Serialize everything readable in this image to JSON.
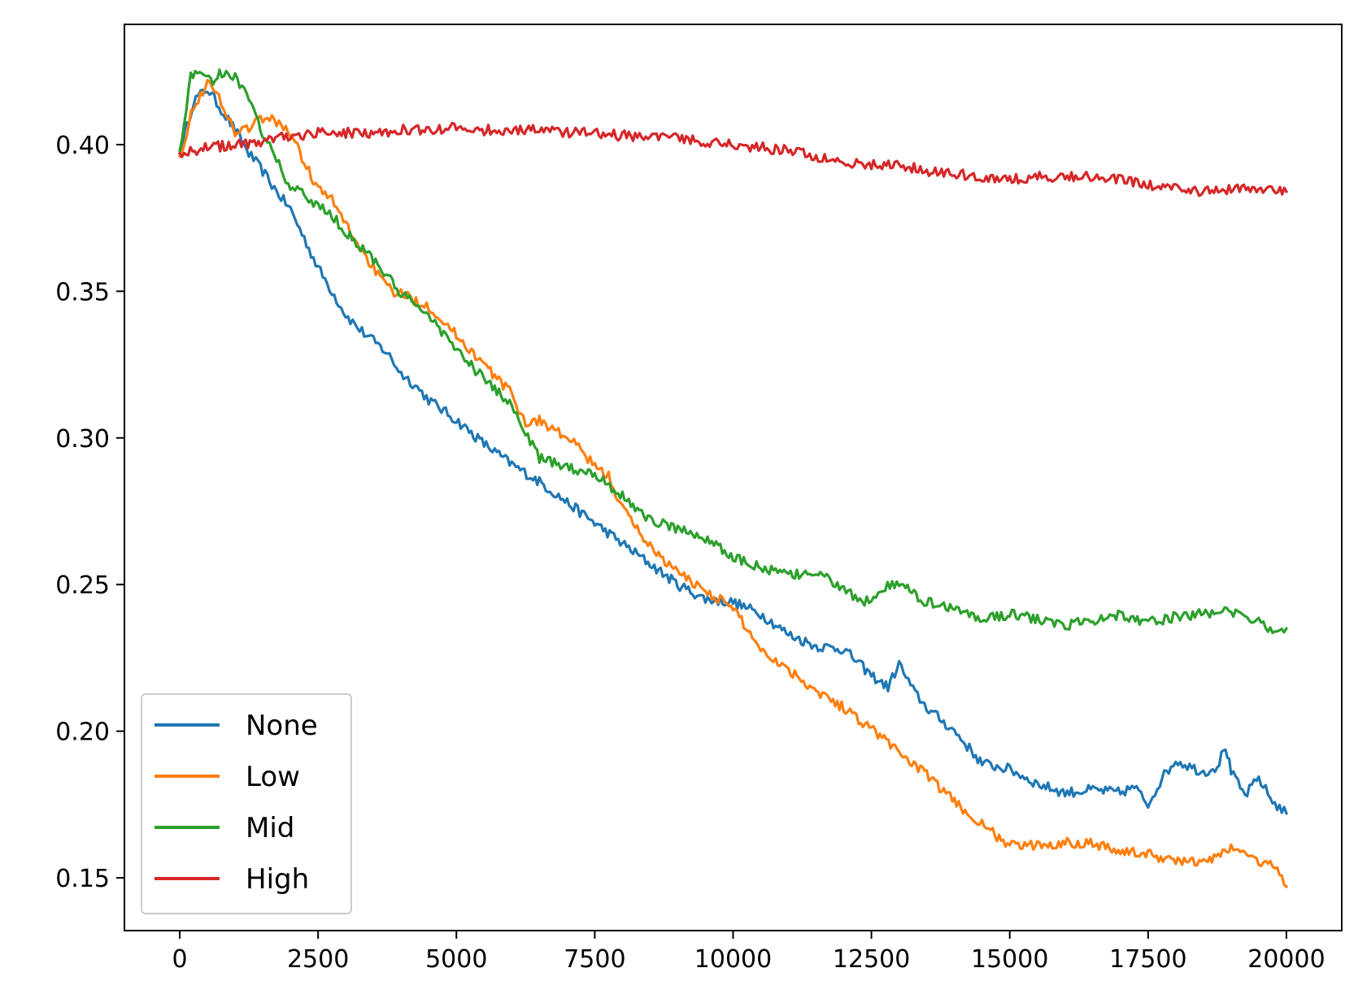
{
  "chart_data": {
    "type": "line",
    "title": "",
    "xlabel": "",
    "ylabel": "",
    "xlim": [
      -1000,
      21000
    ],
    "ylim": [
      0.132,
      0.441
    ],
    "xticks": [
      0,
      2500,
      5000,
      7500,
      10000,
      12500,
      15000,
      17500,
      20000
    ],
    "xtick_labels": [
      "0",
      "2500",
      "5000",
      "7500",
      "10000",
      "12500",
      "15000",
      "17500",
      "20000"
    ],
    "yticks": [
      0.15,
      0.2,
      0.25,
      0.3,
      0.35,
      0.4
    ],
    "ytick_labels": [
      "0.15",
      "0.20",
      "0.25",
      "0.30",
      "0.35",
      "0.40"
    ],
    "legend_position": "lower-left",
    "grid": false,
    "series": [
      {
        "name": "None",
        "color": "#1f77b4",
        "x": [
          0,
          250,
          500,
          750,
          1000,
          1250,
          1500,
          1750,
          2000,
          2250,
          2500,
          2750,
          3000,
          3250,
          3500,
          3750,
          4000,
          4250,
          4500,
          5000,
          5500,
          6000,
          6500,
          7000,
          7500,
          8000,
          8500,
          9000,
          9500,
          10000,
          10500,
          11000,
          11500,
          12000,
          12500,
          12800,
          13000,
          13250,
          13500,
          14000,
          14500,
          15000,
          15500,
          16000,
          16500,
          17000,
          17250,
          17500,
          17750,
          18000,
          18250,
          18500,
          18750,
          18900,
          19000,
          19250,
          19500,
          19750,
          20000
        ],
        "y": [
          0.397,
          0.415,
          0.419,
          0.412,
          0.405,
          0.397,
          0.391,
          0.384,
          0.378,
          0.368,
          0.358,
          0.35,
          0.342,
          0.337,
          0.333,
          0.329,
          0.322,
          0.318,
          0.313,
          0.306,
          0.298,
          0.291,
          0.285,
          0.278,
          0.271,
          0.264,
          0.257,
          0.25,
          0.245,
          0.244,
          0.24,
          0.233,
          0.229,
          0.228,
          0.219,
          0.215,
          0.223,
          0.214,
          0.208,
          0.2,
          0.189,
          0.187,
          0.182,
          0.179,
          0.18,
          0.179,
          0.181,
          0.175,
          0.184,
          0.19,
          0.188,
          0.186,
          0.188,
          0.195,
          0.186,
          0.178,
          0.184,
          0.176,
          0.172
        ]
      },
      {
        "name": "Low",
        "color": "#ff7f0e",
        "x": [
          0,
          250,
          500,
          750,
          1000,
          1250,
          1500,
          1750,
          2000,
          2250,
          2500,
          2750,
          3000,
          3250,
          3500,
          3750,
          4000,
          4500,
          5000,
          5500,
          6000,
          6250,
          6500,
          7000,
          7250,
          7500,
          7750,
          8000,
          8500,
          9000,
          9500,
          10000,
          10500,
          11000,
          11500,
          12000,
          12500,
          13000,
          13500,
          14000,
          14500,
          15000,
          15500,
          16000,
          16500,
          17000,
          17500,
          18000,
          18500,
          19000,
          19250,
          19500,
          19750,
          20000
        ],
        "y": [
          0.396,
          0.413,
          0.421,
          0.415,
          0.404,
          0.406,
          0.409,
          0.408,
          0.404,
          0.394,
          0.385,
          0.381,
          0.373,
          0.365,
          0.358,
          0.351,
          0.349,
          0.345,
          0.335,
          0.325,
          0.315,
          0.305,
          0.306,
          0.3,
          0.296,
          0.29,
          0.287,
          0.276,
          0.263,
          0.254,
          0.248,
          0.242,
          0.228,
          0.221,
          0.214,
          0.208,
          0.201,
          0.193,
          0.185,
          0.176,
          0.168,
          0.161,
          0.161,
          0.162,
          0.162,
          0.159,
          0.158,
          0.156,
          0.155,
          0.16,
          0.159,
          0.155,
          0.155,
          0.147
        ]
      },
      {
        "name": "Mid",
        "color": "#2ca02c",
        "x": [
          0,
          200,
          400,
          600,
          800,
          1000,
          1250,
          1500,
          1750,
          2000,
          2250,
          2500,
          2750,
          3000,
          3500,
          4000,
          4500,
          5000,
          5500,
          6000,
          6250,
          6500,
          7000,
          7500,
          8000,
          8500,
          9000,
          9500,
          10000,
          10500,
          11000,
          11500,
          12000,
          12250,
          12500,
          12750,
          13000,
          13500,
          14000,
          14500,
          15000,
          15500,
          16000,
          16500,
          17000,
          17500,
          18000,
          18500,
          19000,
          19250,
          19500,
          19750,
          20000
        ],
        "y": [
          0.398,
          0.423,
          0.425,
          0.422,
          0.425,
          0.423,
          0.415,
          0.404,
          0.395,
          0.385,
          0.383,
          0.379,
          0.376,
          0.37,
          0.361,
          0.349,
          0.342,
          0.33,
          0.32,
          0.311,
          0.302,
          0.293,
          0.29,
          0.288,
          0.28,
          0.272,
          0.269,
          0.266,
          0.259,
          0.256,
          0.253,
          0.254,
          0.249,
          0.244,
          0.245,
          0.249,
          0.25,
          0.244,
          0.242,
          0.238,
          0.24,
          0.238,
          0.236,
          0.238,
          0.24,
          0.237,
          0.239,
          0.24,
          0.241,
          0.238,
          0.237,
          0.235,
          0.235
        ]
      },
      {
        "name": "High",
        "color": "#d62728",
        "x": [
          0,
          500,
          1000,
          1500,
          2000,
          2500,
          3000,
          3500,
          4000,
          4500,
          5000,
          5500,
          6000,
          6500,
          7000,
          7500,
          8000,
          8500,
          9000,
          9500,
          10000,
          10500,
          11000,
          11500,
          12000,
          12500,
          13000,
          13500,
          14000,
          14500,
          15000,
          15500,
          16000,
          16500,
          17000,
          17500,
          18000,
          18500,
          19000,
          19500,
          20000
        ],
        "y": [
          0.397,
          0.399,
          0.4,
          0.401,
          0.403,
          0.404,
          0.404,
          0.404,
          0.405,
          0.405,
          0.406,
          0.405,
          0.405,
          0.405,
          0.404,
          0.404,
          0.403,
          0.403,
          0.402,
          0.401,
          0.4,
          0.399,
          0.398,
          0.396,
          0.394,
          0.393,
          0.393,
          0.391,
          0.39,
          0.389,
          0.388,
          0.389,
          0.389,
          0.389,
          0.388,
          0.386,
          0.385,
          0.384,
          0.385,
          0.385,
          0.384
        ]
      }
    ]
  }
}
